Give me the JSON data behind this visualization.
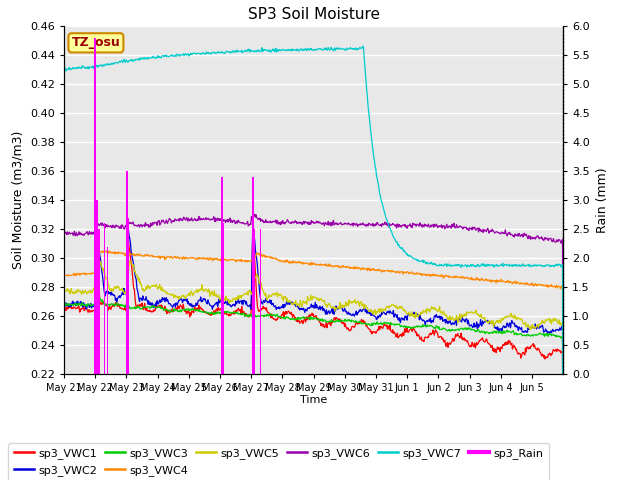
{
  "title": "SP3 Soil Moisture",
  "ylabel_left": "Soil Moisture (m3/m3)",
  "ylabel_right": "Rain (mm)",
  "xlabel": "Time",
  "ylim_left": [
    0.22,
    0.46
  ],
  "ylim_right": [
    0.0,
    6.0
  ],
  "background_color": "#e8e8e8",
  "annotation_text": "TZ_osu",
  "colors": {
    "sp3_VWC1": "#ff0000",
    "sp3_VWC2": "#0000dd",
    "sp3_VWC3": "#00cc00",
    "sp3_VWC4": "#ff8800",
    "sp3_VWC5": "#cccc00",
    "sp3_VWC6": "#9900aa",
    "sp3_VWC7": "#00cccc",
    "sp3_Rain": "#ff00ff"
  },
  "x_ticks_labels": [
    "May 21",
    "May 22",
    "May 23",
    "May 24",
    "May 25",
    "May 26",
    "May 27",
    "May 28",
    "May 29",
    "May 30",
    "May 31",
    "Jun 1",
    "Jun 2",
    "Jun 3",
    "Jun 4",
    "Jun 5"
  ],
  "yticks_left": [
    0.22,
    0.24,
    0.26,
    0.28,
    0.3,
    0.32,
    0.34,
    0.36,
    0.38,
    0.4,
    0.42,
    0.44,
    0.46
  ],
  "yticks_right": [
    0.0,
    0.5,
    1.0,
    1.5,
    2.0,
    2.5,
    3.0,
    3.5,
    4.0,
    4.5,
    5.0,
    5.5,
    6.0
  ]
}
